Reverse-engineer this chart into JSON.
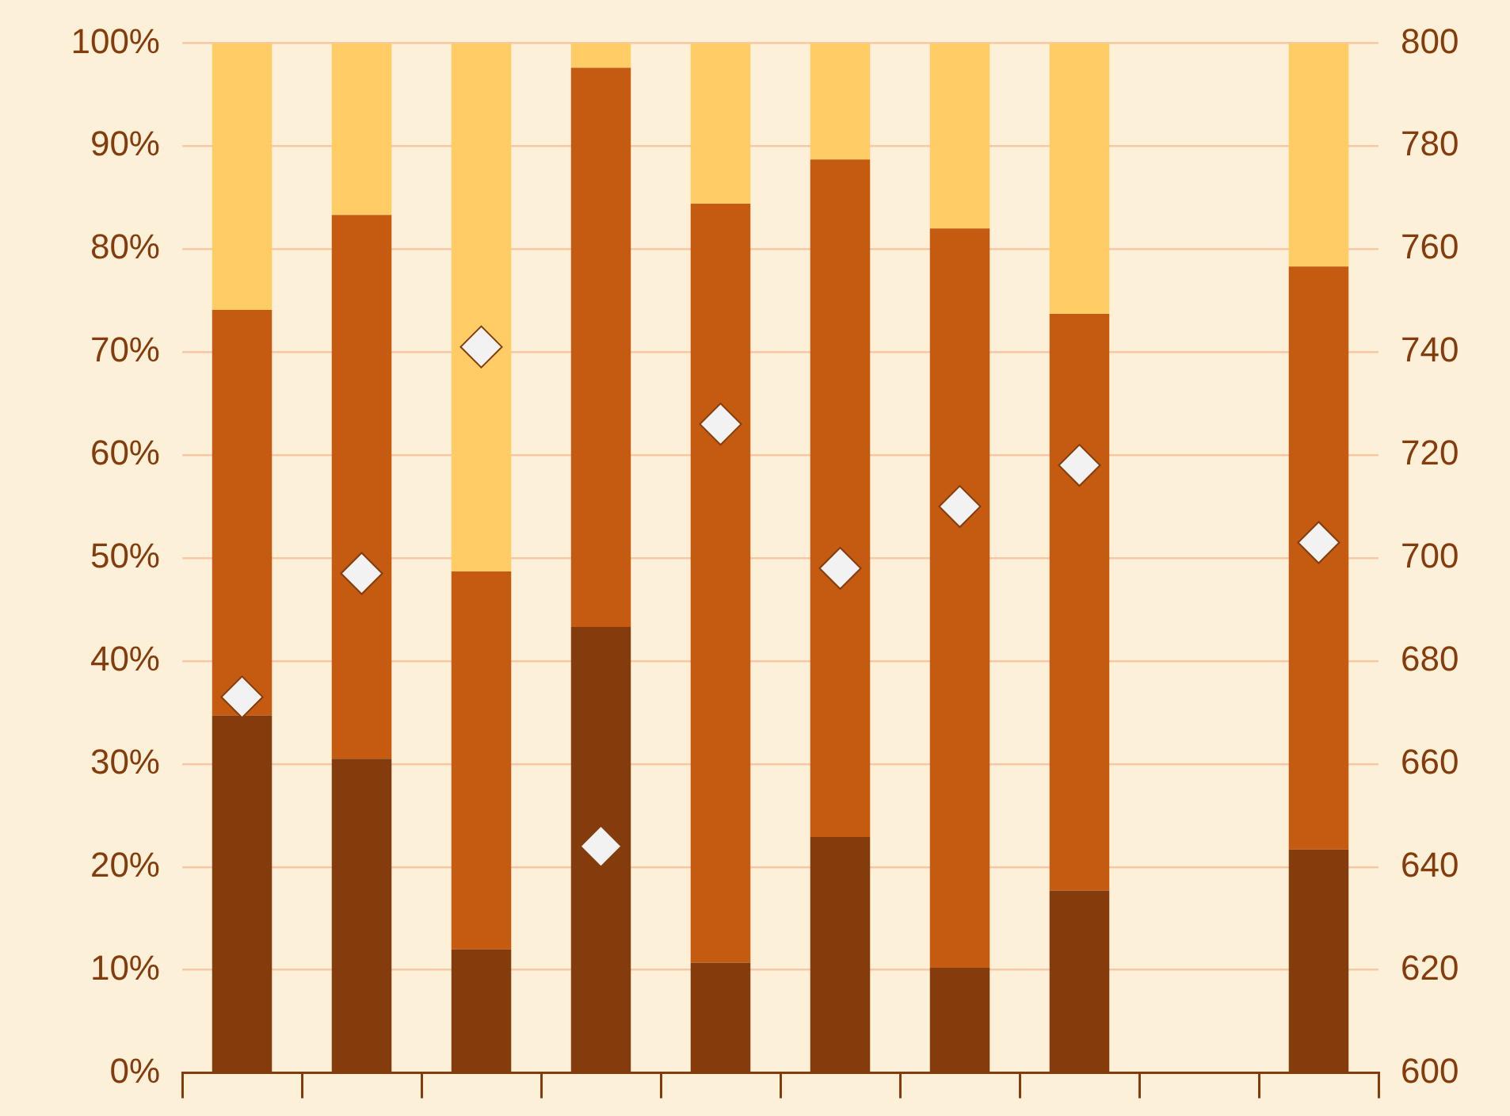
{
  "chart_data": {
    "type": "bar",
    "stacked": true,
    "grid": "y",
    "marker": "diamond",
    "categories": [
      null,
      null,
      null,
      null,
      null,
      null,
      null,
      null,
      null,
      null
    ],
    "series": [
      {
        "color": "#843c0c",
        "values": [
          34.7,
          30.5,
          12.0,
          43.3,
          10.7,
          22.9,
          10.2,
          17.7,
          null,
          21.7
        ]
      },
      {
        "color": "#c55a11",
        "values": [
          39.4,
          52.8,
          36.7,
          54.3,
          73.7,
          65.8,
          71.8,
          56.0,
          null,
          56.6
        ]
      },
      {
        "color": "#ffcc66",
        "values": [
          25.9,
          16.7,
          51.3,
          2.4,
          15.6,
          11.3,
          18.0,
          26.3,
          null,
          21.7
        ]
      },
      {
        "type": "scatter",
        "axis": "y2",
        "color": "#f2f2f2",
        "values": [
          673,
          697,
          741,
          644,
          726,
          698,
          710,
          718,
          null,
          703
        ]
      }
    ],
    "ylim": [
      0,
      100
    ],
    "yticks": [
      {
        "value": 0,
        "label": "0%"
      },
      {
        "value": 10,
        "label": "10%"
      },
      {
        "value": 20,
        "label": "20%"
      },
      {
        "value": 30,
        "label": "30%"
      },
      {
        "value": 40,
        "label": "40%"
      },
      {
        "value": 50,
        "label": "50%"
      },
      {
        "value": 60,
        "label": "60%"
      },
      {
        "value": 70,
        "label": "70%"
      },
      {
        "value": 80,
        "label": "80%"
      },
      {
        "value": 90,
        "label": "90%"
      },
      {
        "value": 100,
        "label": "100%"
      }
    ],
    "y2lim": [
      600,
      800
    ],
    "y2ticks": [
      600,
      620,
      640,
      660,
      680,
      700,
      720,
      740,
      760,
      780,
      800
    ]
  }
}
